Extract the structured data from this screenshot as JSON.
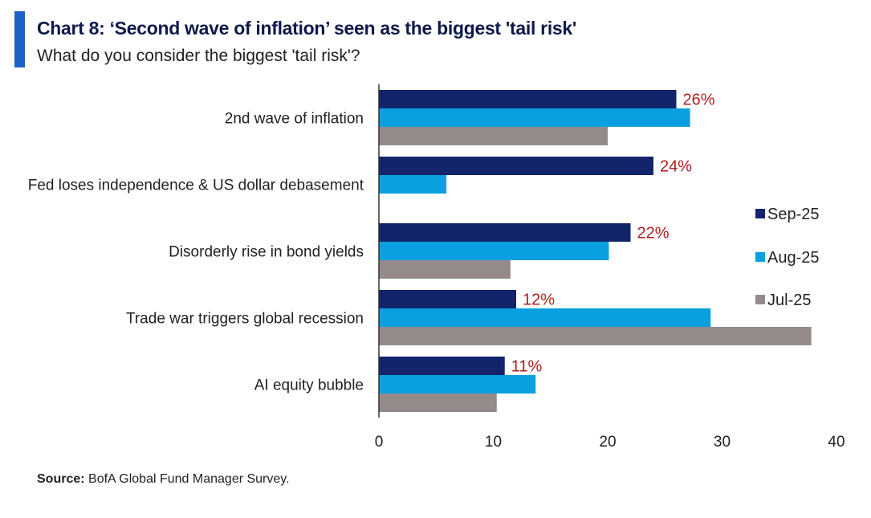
{
  "header": {
    "title": "Chart 8: ‘Second wave of inflation’ seen as the biggest 'tail risk'",
    "subtitle": "What do you consider the biggest 'tail risk'?"
  },
  "footer": {
    "source_label": "Source:",
    "source_text": "BofA Global Fund Manager Survey."
  },
  "colors": {
    "sep": "#14246b",
    "aug": "#0aa0df",
    "jul": "#958a8a",
    "label": "#b01e1e",
    "axis": "#333333",
    "text": "#222222"
  },
  "chart_data": {
    "type": "bar",
    "orientation": "horizontal",
    "categories": [
      "2nd wave of inflation",
      "Fed loses independence & US dollar debasement",
      "Disorderly rise in bond yields",
      "Trade war triggers global recession",
      "AI equity bubble"
    ],
    "series": [
      {
        "name": "Sep-25",
        "values": [
          26,
          24,
          22,
          12,
          11
        ],
        "labels": [
          "26%",
          "24%",
          "22%",
          "12%",
          "11%"
        ]
      },
      {
        "name": "Aug-25",
        "values": [
          27.2,
          5.9,
          20.1,
          29,
          13.7
        ]
      },
      {
        "name": "Jul-25",
        "values": [
          20,
          null,
          11.5,
          37.8,
          10.3
        ]
      }
    ],
    "xlim": [
      0,
      40
    ],
    "xticks": [
      0,
      10,
      20,
      30,
      40
    ],
    "xlabel": "",
    "ylabel": "",
    "grid": false,
    "legend_position": "right"
  }
}
